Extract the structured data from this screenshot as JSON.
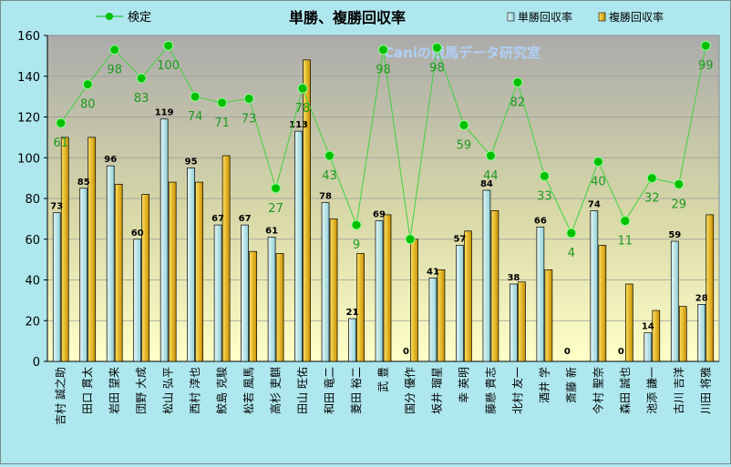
{
  "chart_data": {
    "type": "bar",
    "title": "単勝、複勝回収率",
    "watermark": "Caniの競馬データ研究室",
    "ylim": [
      0,
      160
    ],
    "yticks": [
      0,
      20,
      40,
      60,
      80,
      100,
      120,
      140,
      160
    ],
    "categories": [
      "吉村 誠之助",
      "田口 貫太",
      "岩田 望来",
      "団野 大成",
      "松山 弘平",
      "西村 淳也",
      "鮫島 克駿",
      "松若 風馬",
      "高杉 吏麒",
      "田山 旺佑",
      "和田 竜二",
      "菱田 裕二",
      "武 豊",
      "国分 優作",
      "坂井 瑠星",
      "幸 英明",
      "藤懸 貴志",
      "北村 友一",
      "酒井 学",
      "斎藤 新",
      "今村 聖奈",
      "森田 誠也",
      "池添 謙一",
      "古川 吉洋",
      "川田 将雅"
    ],
    "series": [
      {
        "name": "単勝回収率",
        "color": "#bfe8ea",
        "values": [
          73,
          85,
          96,
          60,
          119,
          95,
          67,
          67,
          61,
          113,
          78,
          21,
          69,
          0,
          41,
          57,
          84,
          38,
          66,
          0,
          74,
          0,
          14,
          59,
          28
        ]
      },
      {
        "name": "複勝回収率",
        "color": "#f2c300",
        "values": [
          110,
          110,
          87,
          82,
          88,
          88,
          101,
          54,
          53,
          148,
          70,
          53,
          72,
          60,
          45,
          64,
          74,
          39,
          45,
          0,
          57,
          38,
          25,
          27,
          72
        ]
      },
      {
        "name": "検定",
        "color": "#00c000",
        "values": [
          117,
          136,
          153,
          139,
          155,
          130,
          127,
          129,
          85,
          134,
          101,
          67,
          153,
          60,
          154,
          116,
          101,
          137,
          91,
          63,
          98,
          69,
          90,
          87,
          155
        ],
        "labels": [
          61,
          80,
          98,
          83,
          100,
          74,
          71,
          73,
          27,
          78,
          43,
          9,
          98,
          "",
          98,
          59,
          44,
          82,
          33,
          4,
          40,
          11,
          32,
          29,
          99
        ]
      }
    ],
    "legend": {
      "position": "top"
    }
  }
}
